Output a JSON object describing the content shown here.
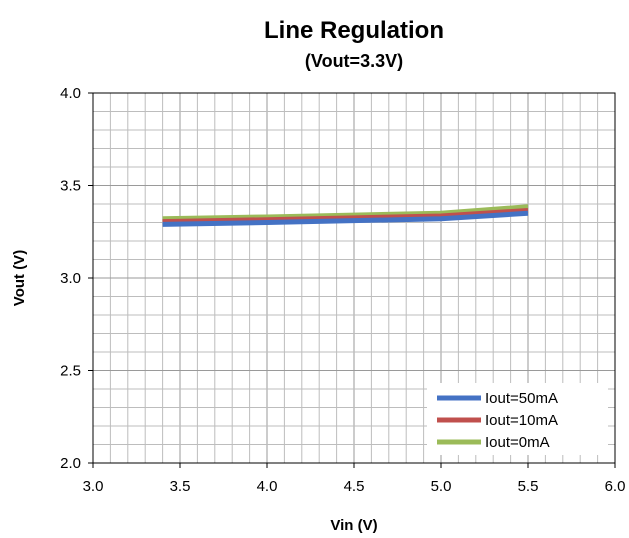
{
  "chart_data": {
    "type": "line",
    "title": "Line Regulation",
    "subtitle": "(Vout=3.3V)",
    "xlabel": "Vin (V)",
    "ylabel": "Vout (V)",
    "xlim": [
      3.0,
      6.0
    ],
    "ylim": [
      2.0,
      4.0
    ],
    "x_ticks": [
      "3.0",
      "3.5",
      "4.0",
      "4.5",
      "5.0",
      "5.5",
      "6.0"
    ],
    "y_ticks": [
      "2.0",
      "2.5",
      "3.0",
      "3.5",
      "4.0"
    ],
    "x_minor_step": 0.1,
    "y_minor_step": 0.1,
    "grid": true,
    "legend_position": "bottom-right",
    "x": [
      3.4,
      4.0,
      5.0,
      5.5
    ],
    "series": [
      {
        "name": "Iout=50mA",
        "color": "#4472C4",
        "values": [
          3.29,
          3.3,
          3.32,
          3.35
        ]
      },
      {
        "name": "Iout=10mA",
        "color": "#C0504D",
        "values": [
          3.305,
          3.315,
          3.335,
          3.365
        ]
      },
      {
        "name": "Iout=0mA",
        "color": "#9BBB59",
        "values": [
          3.32,
          3.33,
          3.35,
          3.385
        ]
      }
    ]
  }
}
